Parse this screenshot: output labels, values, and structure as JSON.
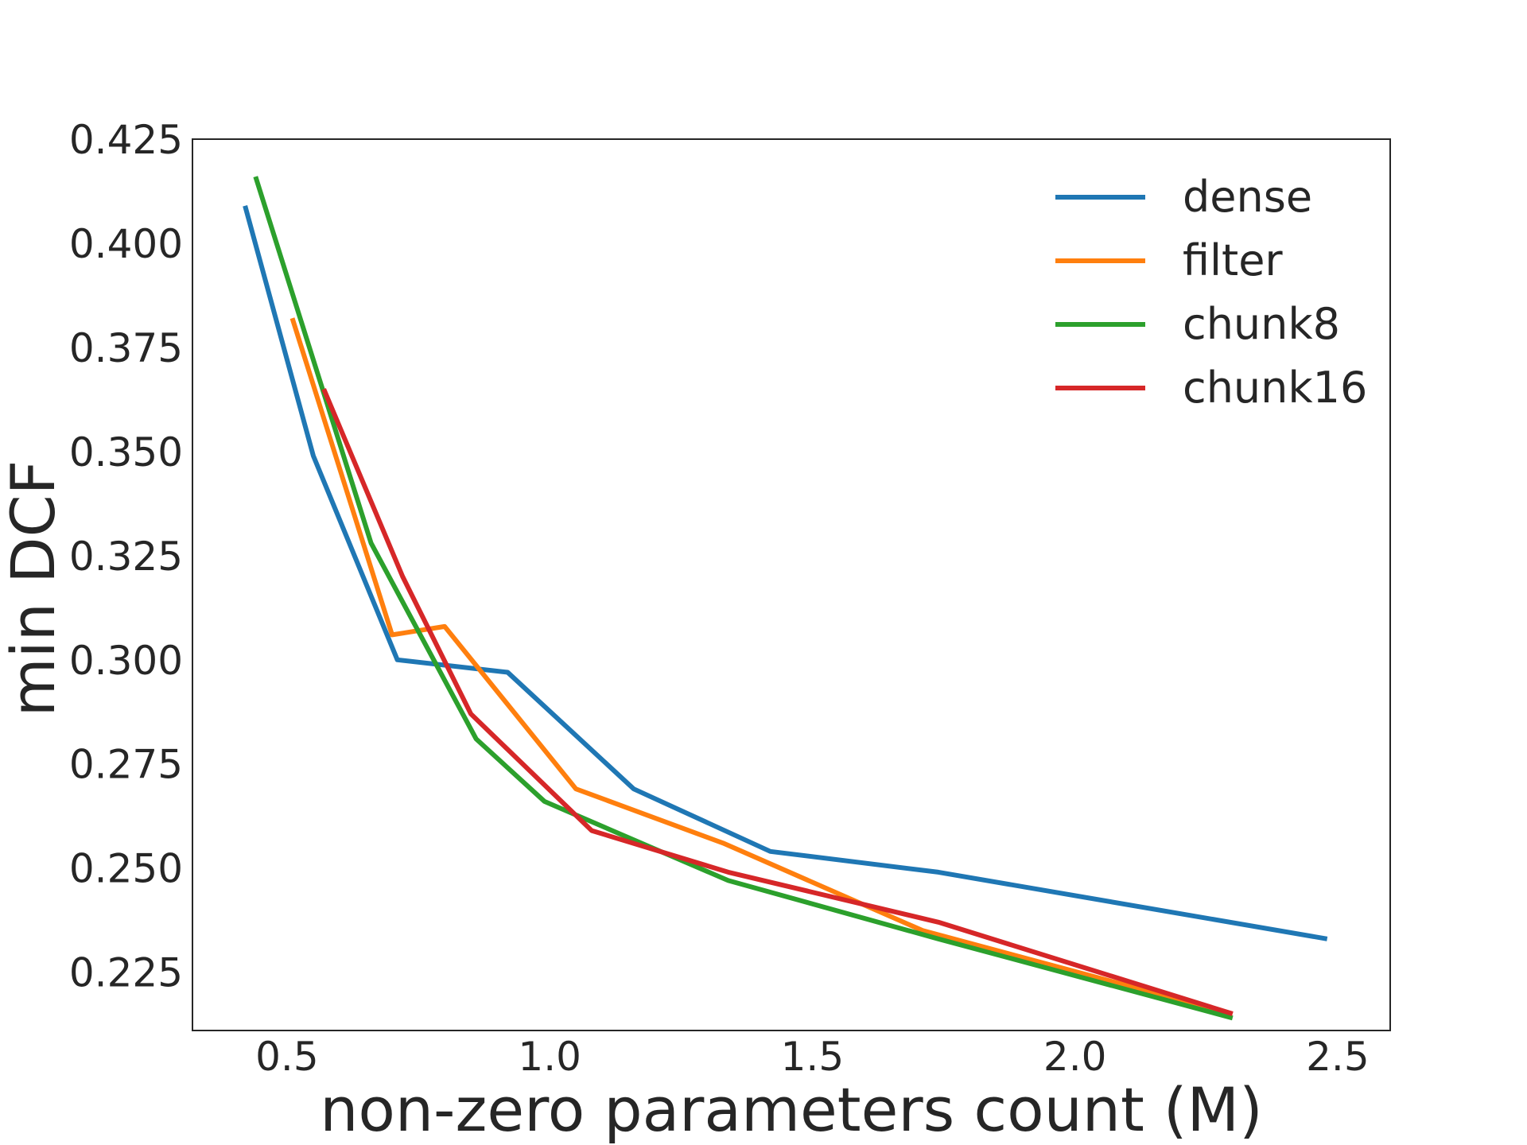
{
  "chart_data": {
    "type": "line",
    "xlabel": "non-zero parameters count (M)",
    "ylabel": "min DCF",
    "xlim": [
      0.32,
      2.6
    ],
    "ylim": [
      0.211,
      0.425
    ],
    "xticks": [
      0.5,
      1.0,
      1.5,
      2.0,
      2.5
    ],
    "xtick_labels": [
      "0.5",
      "1.0",
      "1.5",
      "2.0",
      "2.5"
    ],
    "yticks": [
      0.225,
      0.25,
      0.275,
      0.3,
      0.325,
      0.35,
      0.375,
      0.4,
      0.425
    ],
    "ytick_labels": [
      "0.225",
      "0.250",
      "0.275",
      "0.300",
      "0.325",
      "0.350",
      "0.375",
      "0.400",
      "0.425"
    ],
    "grid": false,
    "legend_position": "top-right",
    "series": [
      {
        "name": "dense",
        "color": "#1f77b4",
        "x": [
          0.42,
          0.55,
          0.71,
          0.92,
          1.16,
          1.42,
          1.74,
          2.48
        ],
        "y": [
          0.409,
          0.349,
          0.3,
          0.297,
          0.269,
          0.254,
          0.249,
          0.233
        ]
      },
      {
        "name": "filter",
        "color": "#ff7f0e",
        "x": [
          0.51,
          0.7,
          0.8,
          1.05,
          1.33,
          1.71,
          2.3
        ],
        "y": [
          0.382,
          0.306,
          0.308,
          0.269,
          0.256,
          0.235,
          0.215
        ]
      },
      {
        "name": "chunk8",
        "color": "#2ca02c",
        "x": [
          0.44,
          0.66,
          0.86,
          0.99,
          1.34,
          1.74,
          2.3
        ],
        "y": [
          0.416,
          0.328,
          0.281,
          0.266,
          0.247,
          0.233,
          0.214
        ]
      },
      {
        "name": "chunk16",
        "color": "#d62728",
        "x": [
          0.57,
          0.72,
          0.85,
          1.08,
          1.34,
          1.74,
          2.3
        ],
        "y": [
          0.365,
          0.32,
          0.287,
          0.259,
          0.249,
          0.237,
          0.215
        ]
      }
    ]
  }
}
